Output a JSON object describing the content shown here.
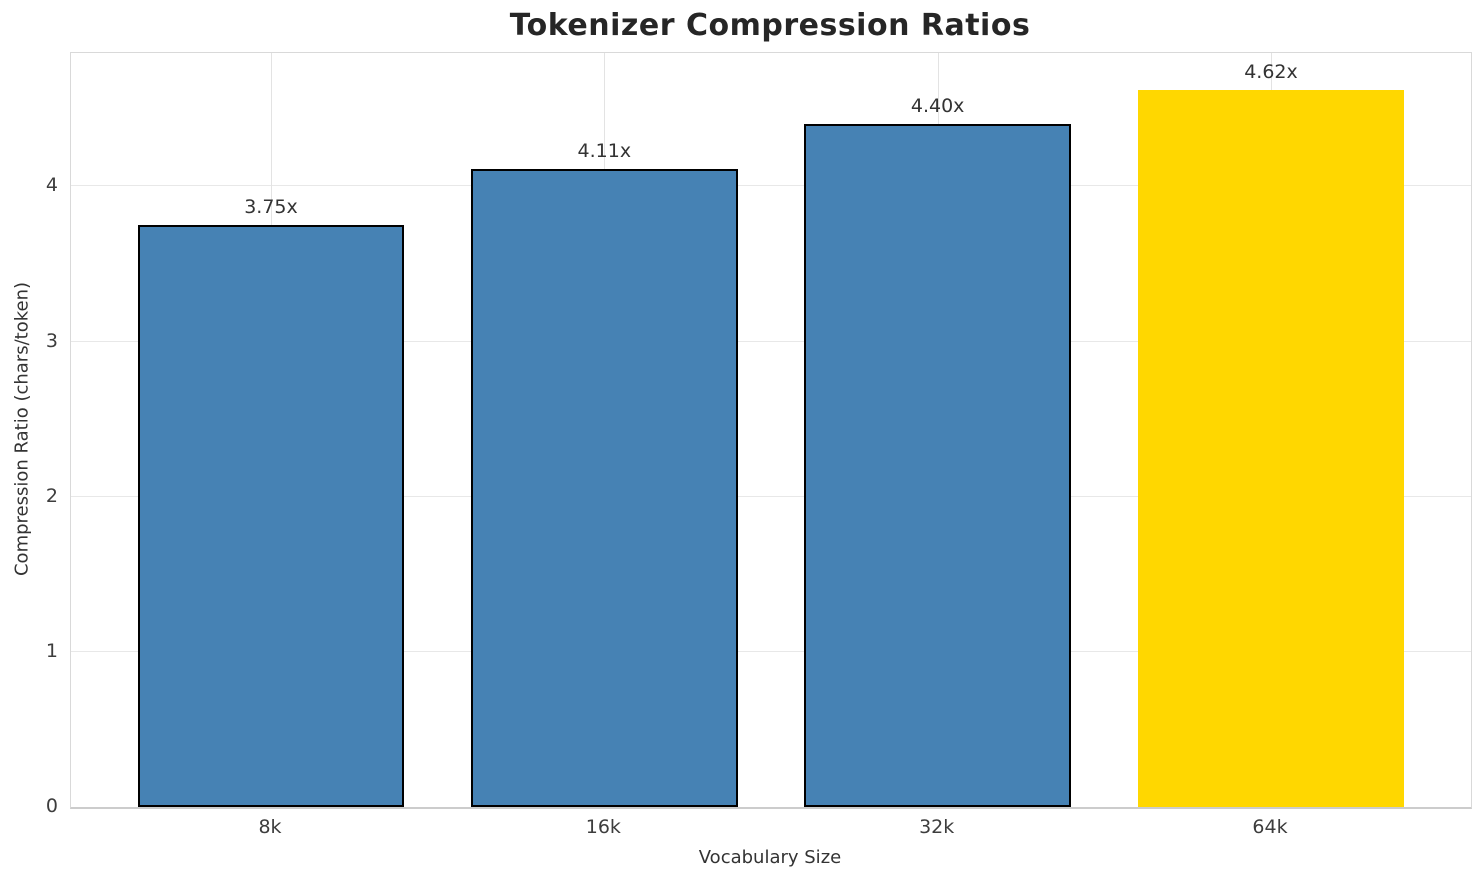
{
  "chart_data": {
    "type": "bar",
    "title": "Tokenizer Compression Ratios",
    "xlabel": "Vocabulary Size",
    "ylabel": "Compression Ratio (chars/token)",
    "categories": [
      "8k",
      "16k",
      "32k",
      "64k"
    ],
    "values": [
      3.75,
      4.11,
      4.4,
      4.62
    ],
    "value_labels": [
      "3.75x",
      "4.11x",
      "4.40x",
      "4.62x"
    ],
    "yticks": [
      0,
      1,
      2,
      3,
      4
    ],
    "ylim": [
      0,
      4.86
    ],
    "grid": true,
    "legend_position": "none",
    "bar_color": "#4682B4",
    "highlight_color": "#FFD700",
    "highlight_index": 3,
    "bar_edge_color": "#000000"
  }
}
